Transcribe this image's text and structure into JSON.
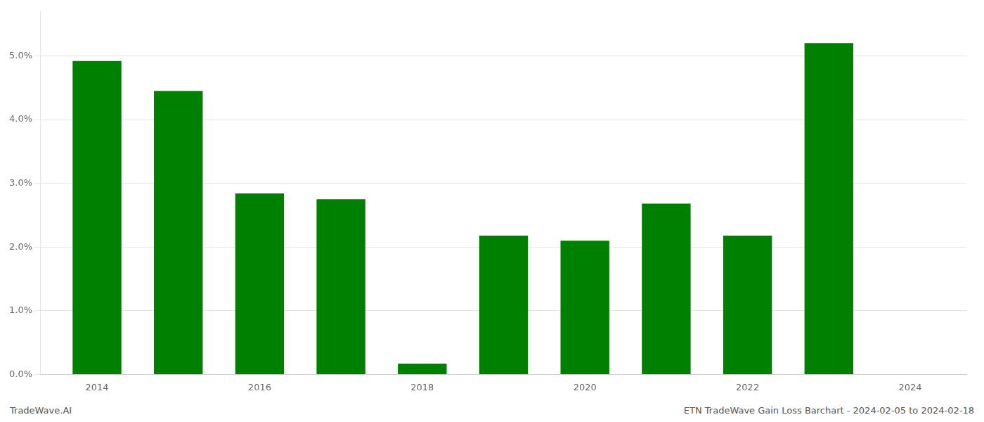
{
  "chart_data": {
    "type": "bar",
    "x": [
      2014,
      2015,
      2016,
      2017,
      2018,
      2019,
      2020,
      2021,
      2022,
      2023
    ],
    "values": [
      0.0492,
      0.0445,
      0.0284,
      0.0275,
      0.0017,
      0.0218,
      0.021,
      0.0268,
      0.0218,
      0.052
    ],
    "color": "#008000",
    "xlim": [
      2013.3,
      2024.7
    ],
    "xticks": [
      2014,
      2016,
      2018,
      2020,
      2022,
      2024
    ],
    "ylim": [
      0,
      0.057
    ],
    "yticks": [
      {
        "value": 0,
        "label": "0.0%"
      },
      {
        "value": 0.01,
        "label": "1.0%"
      },
      {
        "value": 0.02,
        "label": "2.0%"
      },
      {
        "value": 0.03,
        "label": "3.0%"
      },
      {
        "value": 0.04,
        "label": "4.0%"
      },
      {
        "value": 0.05,
        "label": "5.0%"
      }
    ],
    "grid": true,
    "annotations": [
      "TradeWave.AI",
      "ETN TradeWave Gain Loss Barchart - 2024-02-05 to 2024-02-18"
    ]
  }
}
